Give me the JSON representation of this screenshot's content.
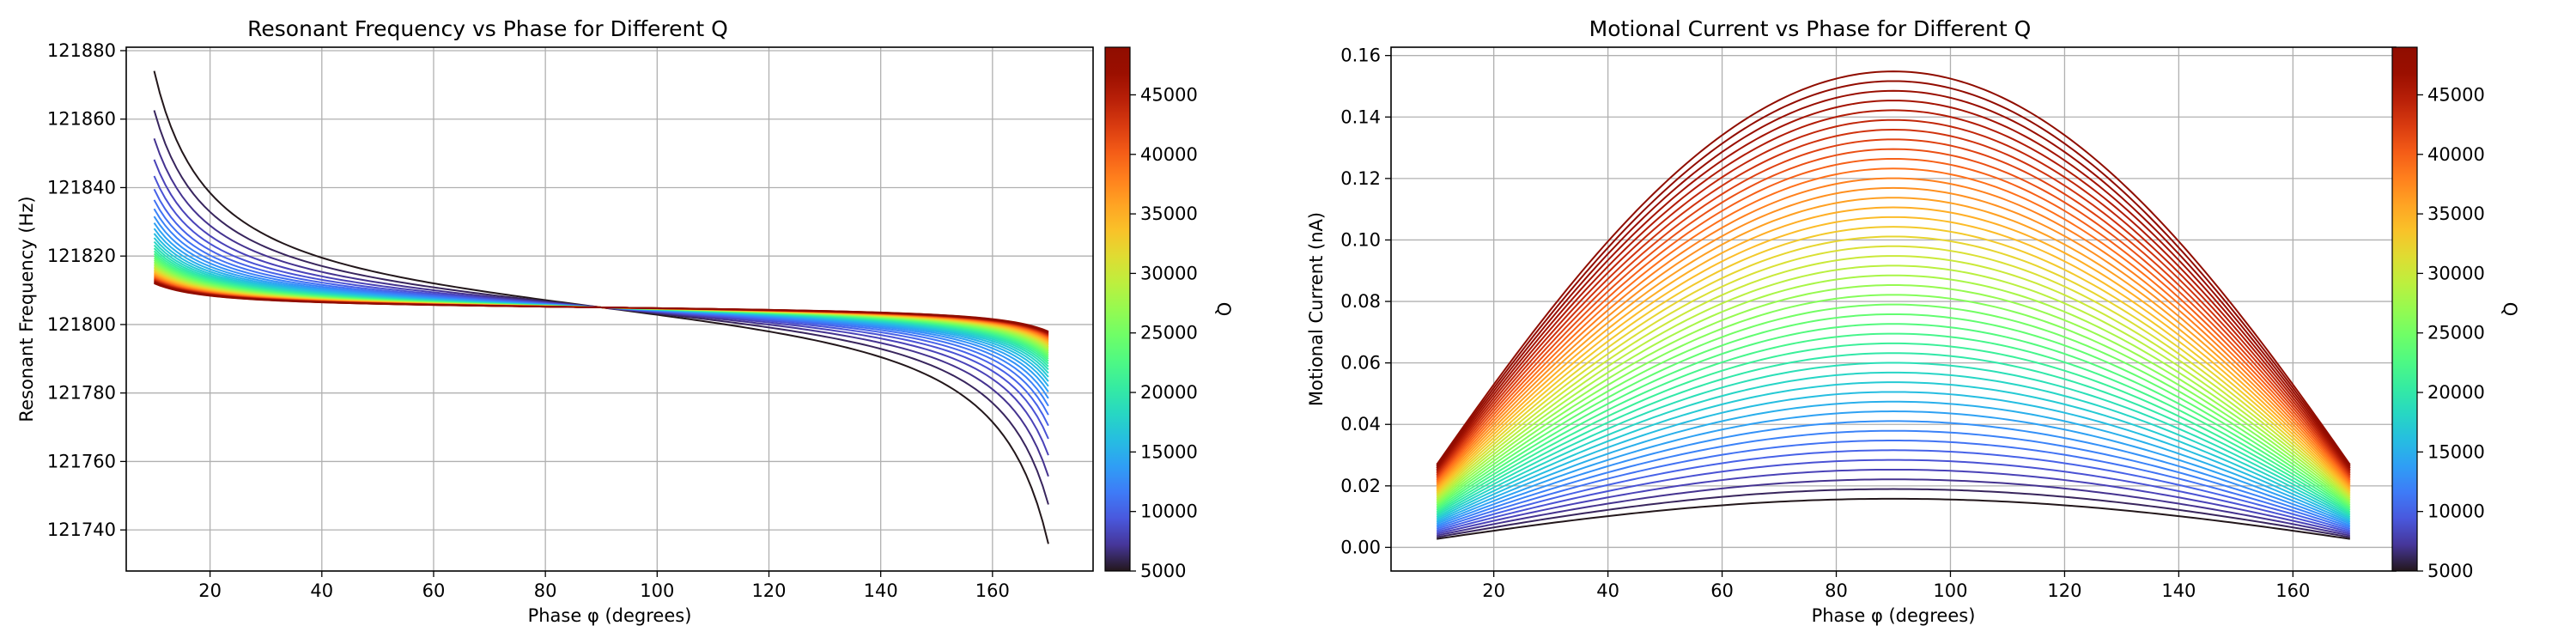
{
  "chart_data": [
    {
      "type": "line",
      "title": "Resonant Frequency vs Phase for Different Q",
      "xlabel": "Phase φ (degrees)",
      "ylabel": "Resonant Frequency (Hz)",
      "xlim": [
        5,
        178
      ],
      "ylim": [
        121728,
        121881
      ],
      "xticks": [
        "20",
        "40",
        "60",
        "80",
        "100",
        "120",
        "140",
        "160"
      ],
      "yticks": [
        "121740",
        "121760",
        "121780",
        "121800",
        "121820",
        "121840",
        "121860",
        "121880"
      ],
      "grid": true,
      "x": [
        10,
        170
      ],
      "series_model": "f = f0 + (f0 / (2Q)) · cot(φ)",
      "f0": 121805,
      "Q_values": [
        5000,
        6000,
        7000,
        8000,
        9000,
        10000,
        11000,
        12000,
        13000,
        14000,
        15000,
        16000,
        17000,
        18000,
        19000,
        20000,
        21000,
        22000,
        23000,
        24000,
        25000,
        26000,
        27000,
        28000,
        29000,
        30000,
        31000,
        32000,
        33000,
        34000,
        35000,
        36000,
        37000,
        38000,
        39000,
        40000,
        41000,
        42000,
        43000,
        44000,
        45000,
        46000,
        47000,
        48000,
        49000
      ],
      "colorbar": {
        "label": "Q",
        "range": [
          5000,
          49000
        ],
        "ticks": [
          "5000",
          "10000",
          "15000",
          "20000",
          "25000",
          "30000",
          "35000",
          "40000",
          "45000"
        ],
        "colormap": "turbo"
      }
    },
    {
      "type": "line",
      "title": "Motional Current vs Phase for Different Q",
      "xlabel": "Phase φ (degrees)",
      "ylabel": "Motional Current (nA)",
      "xlim": [
        2,
        178
      ],
      "ylim": [
        -0.0077,
        0.1627
      ],
      "xticks": [
        "20",
        "40",
        "60",
        "80",
        "100",
        "120",
        "140",
        "160"
      ],
      "yticks": [
        "0.00",
        "0.02",
        "0.04",
        "0.06",
        "0.08",
        "0.10",
        "0.12",
        "0.14",
        "0.16"
      ],
      "grid": true,
      "x": [
        10,
        170
      ],
      "series_model": "I = k · Q · sin(φ)",
      "k_nA_per_Q": 3.16e-06,
      "Q_values": [
        5000,
        6000,
        7000,
        8000,
        9000,
        10000,
        11000,
        12000,
        13000,
        14000,
        15000,
        16000,
        17000,
        18000,
        19000,
        20000,
        21000,
        22000,
        23000,
        24000,
        25000,
        26000,
        27000,
        28000,
        29000,
        30000,
        31000,
        32000,
        33000,
        34000,
        35000,
        36000,
        37000,
        38000,
        39000,
        40000,
        41000,
        42000,
        43000,
        44000,
        45000,
        46000,
        47000,
        48000,
        49000
      ],
      "colorbar": {
        "label": "Q",
        "range": [
          5000,
          49000
        ],
        "ticks": [
          "5000",
          "10000",
          "15000",
          "20000",
          "25000",
          "30000",
          "35000",
          "40000",
          "45000"
        ],
        "colormap": "turbo"
      }
    }
  ]
}
